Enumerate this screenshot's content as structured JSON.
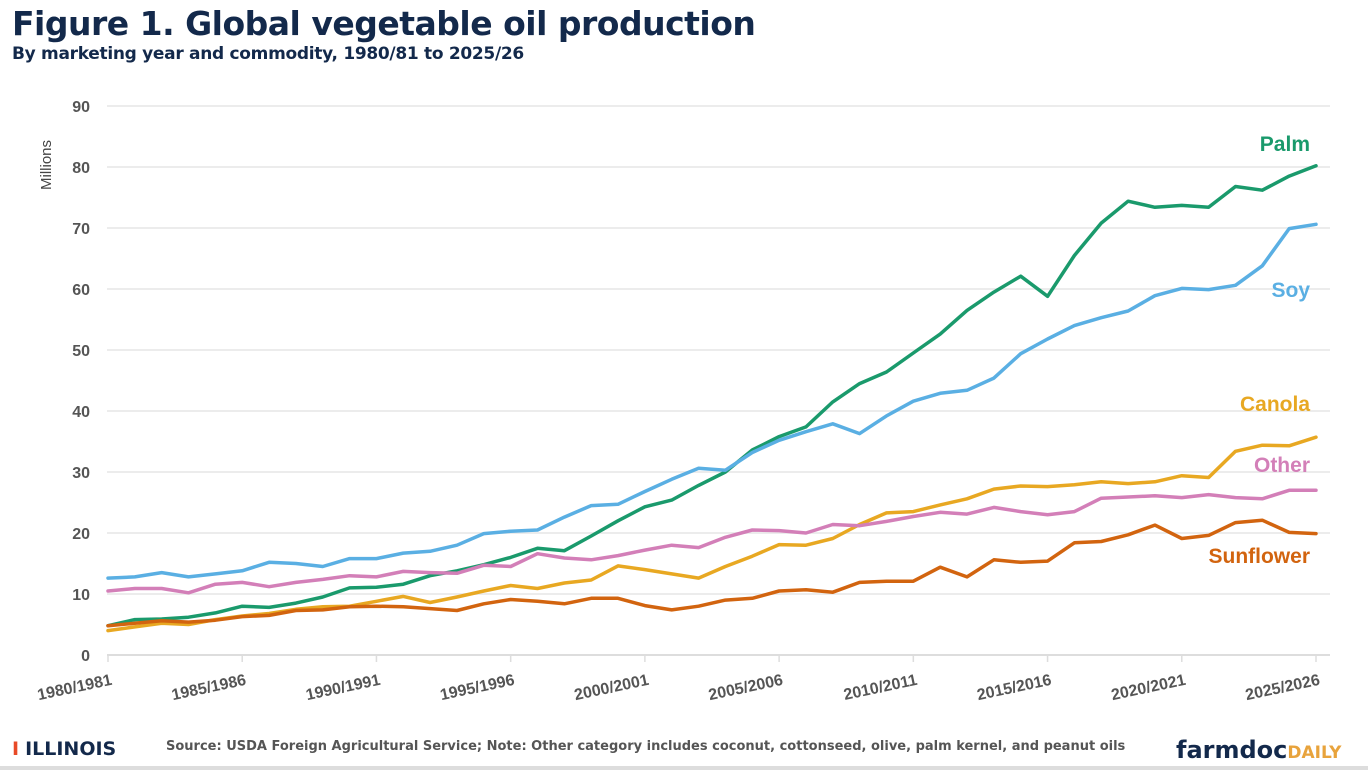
{
  "header": {
    "title": "Figure 1. Global vegetable oil production",
    "subtitle": "By marketing year and commodity, 1980/81 to 2025/26"
  },
  "footer": {
    "logo_left": "ILLINOIS",
    "source": "Source: USDA Foreign Agricultural Service; Note: Other category includes coconut, cottonseed, olive, palm kernel, and peanut oils",
    "logo_right_main": "farmdoc",
    "logo_right_accent": "DAILY"
  },
  "chart_data": {
    "type": "line",
    "title": "Figure 1. Global vegetable oil production",
    "subtitle": "By marketing year and commodity, 1980/81 to 2025/26",
    "xlabel": "",
    "ylabel": "Millions",
    "ylim": [
      0,
      90
    ],
    "yticks": [
      0,
      10,
      20,
      30,
      40,
      50,
      60,
      70,
      80,
      90
    ],
    "xtick_labels": [
      "1980/1981",
      "1985/1986",
      "1990/1991",
      "1995/1996",
      "2000/2001",
      "2005/2006",
      "2010/2011",
      "2015/2016",
      "2020/2021",
      "2025/2026"
    ],
    "x_start_year": 1980,
    "grid": true,
    "legend": "inline labels at right",
    "series": [
      {
        "name": "Palm",
        "color": "#1a9a6c",
        "values": [
          4.8,
          5.8,
          5.9,
          6.2,
          6.9,
          8.0,
          7.8,
          8.5,
          9.5,
          11.0,
          11.1,
          11.6,
          13.0,
          13.8,
          14.8,
          16.0,
          17.5,
          17.1,
          19.5,
          22.0,
          24.3,
          25.4,
          27.8,
          30.0,
          33.6,
          35.8,
          37.4,
          41.5,
          44.5,
          46.4,
          49.5,
          52.6,
          56.5,
          59.5,
          62.1,
          58.8,
          65.5,
          70.8,
          74.4,
          73.4,
          73.7,
          73.4,
          76.8,
          76.2,
          78.5,
          80.2
        ]
      },
      {
        "name": "Soy",
        "color": "#5aafe3",
        "values": [
          12.6,
          12.8,
          13.5,
          12.8,
          13.3,
          13.8,
          15.2,
          15.0,
          14.5,
          15.8,
          15.8,
          16.7,
          17.0,
          18.0,
          19.9,
          20.3,
          20.5,
          22.6,
          24.5,
          24.7,
          26.8,
          28.8,
          30.6,
          30.3,
          33.2,
          35.2,
          36.6,
          37.9,
          36.3,
          39.2,
          41.6,
          42.9,
          43.4,
          45.4,
          49.4,
          51.8,
          54.0,
          55.3,
          56.4,
          58.9,
          60.1,
          59.9,
          60.6,
          63.8,
          69.9,
          70.6
        ]
      },
      {
        "name": "Canola",
        "color": "#e8a822",
        "values": [
          4.0,
          4.6,
          5.2,
          5.0,
          5.8,
          6.4,
          6.8,
          7.5,
          7.9,
          8.0,
          8.8,
          9.6,
          8.6,
          9.5,
          10.5,
          11.4,
          10.9,
          11.8,
          12.3,
          14.6,
          14.0,
          13.3,
          12.6,
          14.5,
          16.2,
          18.1,
          18.0,
          19.1,
          21.4,
          23.3,
          23.5,
          24.6,
          25.6,
          27.2,
          27.7,
          27.6,
          27.9,
          28.4,
          28.1,
          28.4,
          29.4,
          29.1,
          33.4,
          34.4,
          34.3,
          35.7
        ]
      },
      {
        "name": "Other",
        "color": "#d37fb8",
        "values": [
          10.5,
          10.9,
          10.9,
          10.2,
          11.6,
          11.9,
          11.2,
          11.9,
          12.4,
          13.0,
          12.8,
          13.7,
          13.5,
          13.4,
          14.7,
          14.5,
          16.6,
          15.9,
          15.6,
          16.3,
          17.2,
          18.0,
          17.6,
          19.3,
          20.5,
          20.4,
          20.0,
          21.4,
          21.2,
          21.9,
          22.7,
          23.4,
          23.1,
          24.2,
          23.5,
          23.0,
          23.5,
          25.7,
          25.9,
          26.1,
          25.8,
          26.3,
          25.8,
          25.6,
          27.0,
          27.0
        ]
      },
      {
        "name": "Sunflower",
        "color": "#d2640f",
        "values": [
          4.8,
          5.2,
          5.6,
          5.4,
          5.7,
          6.3,
          6.5,
          7.3,
          7.4,
          7.9,
          8.0,
          7.9,
          7.6,
          7.3,
          8.4,
          9.1,
          8.8,
          8.4,
          9.3,
          9.3,
          8.1,
          7.4,
          8.0,
          9.0,
          9.3,
          10.5,
          10.7,
          10.3,
          11.9,
          12.1,
          12.1,
          14.4,
          12.8,
          15.6,
          15.2,
          15.4,
          18.4,
          18.6,
          19.7,
          21.3,
          19.1,
          19.6,
          21.7,
          22.1,
          20.1,
          19.9
        ]
      }
    ]
  }
}
